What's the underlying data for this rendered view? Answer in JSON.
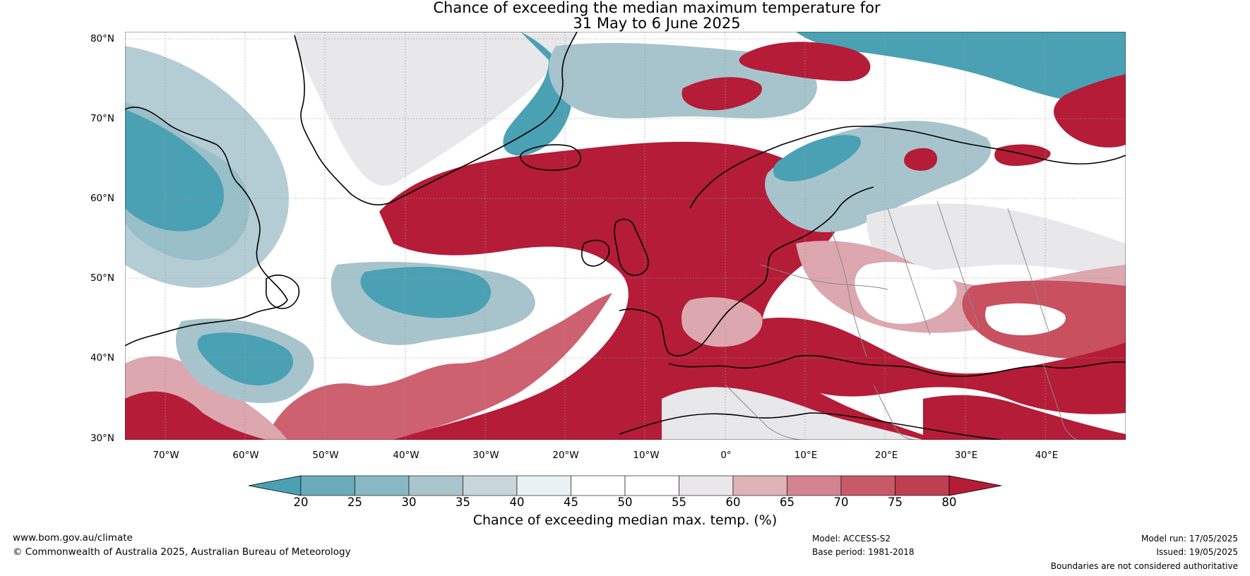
{
  "title": {
    "line1": "Chance of exceeding the median maximum temperature for",
    "line2": "31 May to 6 June 2025"
  },
  "map": {
    "lat_labels": [
      "80°N",
      "70°N",
      "60°N",
      "50°N",
      "40°N",
      "30°N"
    ],
    "lon_labels": [
      "70°W",
      "60°W",
      "50°W",
      "40°W",
      "30°W",
      "20°W",
      "10°W",
      "0°",
      "10°E",
      "20°E",
      "30°E",
      "40°E"
    ],
    "colors": {
      "very_warm": "#b51c37",
      "warm": "#c8505f",
      "mild_warm": "#dca7ae",
      "neutral": "#ffffff",
      "near_neutral": "#e8e8ea",
      "cool": "#a7c4cc",
      "very_cool": "#4aa1b4",
      "coast": "#000000",
      "border": "#8a8a8a"
    }
  },
  "colorbar": {
    "ticks": [
      "20",
      "25",
      "30",
      "35",
      "40",
      "45",
      "50",
      "55",
      "60",
      "65",
      "70",
      "75",
      "80"
    ],
    "colors": [
      "#4aa1b4",
      "#6aaabb",
      "#88b8c4",
      "#a9c5cb",
      "#c9d6d9",
      "#e8f1f3",
      "#ffffff",
      "#ffffff",
      "#e9e7e9",
      "#dfb2b8",
      "#d38490",
      "#c85a68",
      "#bd3f50",
      "#b51c37"
    ],
    "label": "Chance of exceeding median max. temp. (%)"
  },
  "footer": {
    "url": "www.bom.gov.au/climate",
    "copyright": "© Commonwealth of Australia 2025, Australian Bureau of Meteorology",
    "model": "Model: ACCESS-S2",
    "base_period": "Base period: 1981-2018",
    "model_run": "Model run: 17/05/2025",
    "issued": "Issued: 19/05/2025",
    "disclaimer": "Boundaries are not considered authoritative"
  }
}
